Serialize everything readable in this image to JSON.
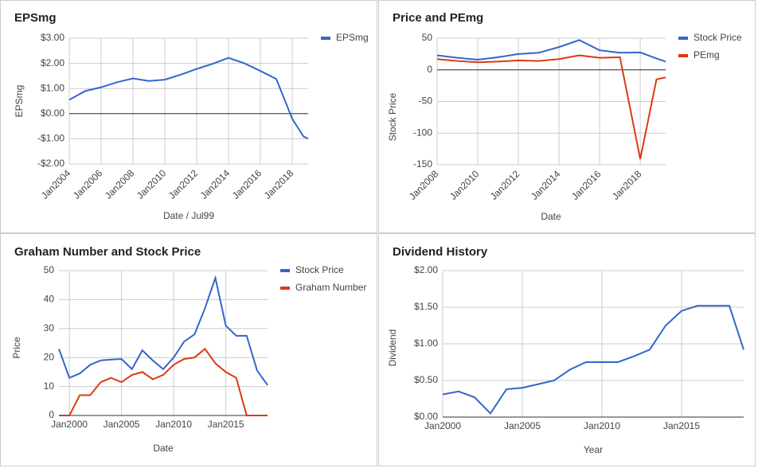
{
  "chart_data": [
    {
      "type": "line",
      "title": "EPSmg",
      "y_label": "EPSmg",
      "x_label": "Date / Jul99",
      "x": [
        2004,
        2005,
        2006,
        2007,
        2008,
        2009,
        2010,
        2011,
        2012,
        2013,
        2014,
        2015,
        2016,
        2017,
        2018,
        2018.7,
        2019
      ],
      "series": [
        {
          "name": "EPSmg",
          "color": "#3366cc",
          "values": [
            0.55,
            0.9,
            1.05,
            1.25,
            1.4,
            1.3,
            1.35,
            1.55,
            1.78,
            1.98,
            2.22,
            2.0,
            1.7,
            1.38,
            -0.2,
            -0.9,
            -1.0
          ]
        }
      ],
      "xlim": [
        2004,
        2019
      ],
      "xticks": [
        {
          "value": 2004,
          "label": "Jan2004"
        },
        {
          "value": 2006,
          "label": "Jan2006"
        },
        {
          "value": 2008,
          "label": "Jan2008"
        },
        {
          "value": 2010,
          "label": "Jan2010"
        },
        {
          "value": 2012,
          "label": "Jan2012"
        },
        {
          "value": 2014,
          "label": "Jan2014"
        },
        {
          "value": 2016,
          "label": "Jan2016"
        },
        {
          "value": 2018,
          "label": "Jan2018"
        }
      ],
      "ylim": [
        -2,
        3
      ],
      "yticks": [
        {
          "value": 3,
          "label": "$3.00"
        },
        {
          "value": 2,
          "label": "$2.00"
        },
        {
          "value": 1,
          "label": "$1.00"
        },
        {
          "value": 0,
          "label": "$0.00"
        },
        {
          "value": -1,
          "label": "-$1.00"
        },
        {
          "value": -2,
          "label": "-$2.00"
        }
      ],
      "grid": true,
      "legend": "right"
    },
    {
      "type": "line",
      "title": "Price and PEmg",
      "y_label": "Stock Price",
      "x_label": "Date",
      "x": [
        2008,
        2009,
        2010,
        2011,
        2012,
        2013,
        2014,
        2015,
        2016,
        2017,
        2018,
        2018.8,
        2019.25
      ],
      "series": [
        {
          "name": "Stock Price",
          "color": "#3366cc",
          "values": [
            23,
            19,
            16,
            20,
            25,
            27,
            36,
            47,
            31,
            27,
            27.5,
            18,
            13
          ]
        },
        {
          "name": "PEmg",
          "color": "#dc3912",
          "values": [
            17,
            14,
            12,
            13,
            15,
            14,
            17,
            23,
            19,
            20,
            -141,
            -15,
            -12
          ]
        }
      ],
      "xlim": [
        2008,
        2019.25
      ],
      "xticks": [
        {
          "value": 2008,
          "label": "Jan2008"
        },
        {
          "value": 2010,
          "label": "Jan2010"
        },
        {
          "value": 2012,
          "label": "Jan2012"
        },
        {
          "value": 2014,
          "label": "Jan2014"
        },
        {
          "value": 2016,
          "label": "Jan2016"
        },
        {
          "value": 2018,
          "label": "Jan2018"
        }
      ],
      "ylim": [
        -150,
        50
      ],
      "yticks": [
        50,
        0,
        -50,
        -100,
        -150
      ],
      "grid": true,
      "legend": "right"
    },
    {
      "type": "line",
      "title": "Graham Number and Stock Price",
      "y_label": "Price",
      "x_label": "Date",
      "x": [
        1999,
        2000,
        2001,
        2002,
        2003,
        2004,
        2005,
        2006,
        2007,
        2008,
        2009,
        2010,
        2011,
        2012,
        2013,
        2014,
        2015,
        2016,
        2017,
        2018,
        2019
      ],
      "series": [
        {
          "name": "Stock Price",
          "color": "#3366cc",
          "values": [
            23,
            13,
            14.5,
            17.5,
            19,
            19.3,
            19.5,
            16,
            22.5,
            19,
            16,
            20,
            25.5,
            28,
            37,
            47.5,
            31,
            27.5,
            27.5,
            15.5,
            10.5
          ]
        },
        {
          "name": "Graham Number",
          "color": "#dc3912",
          "values": [
            0,
            0,
            7,
            7,
            11.5,
            13,
            11.5,
            14,
            15,
            12.5,
            14,
            17.5,
            19.5,
            20,
            23,
            18,
            15,
            13,
            0,
            0,
            0
          ]
        }
      ],
      "xlim": [
        1999,
        2019
      ],
      "xticks": [
        {
          "value": 2000,
          "label": "Jan2000"
        },
        {
          "value": 2005,
          "label": "Jan2005"
        },
        {
          "value": 2010,
          "label": "Jan2010"
        },
        {
          "value": 2015,
          "label": "Jan2015"
        }
      ],
      "ylim": [
        0,
        50
      ],
      "yticks": [
        50,
        40,
        30,
        20,
        10,
        0
      ],
      "grid": true,
      "legend": "right"
    },
    {
      "type": "line",
      "title": "Dividend History",
      "y_label": "Dividend",
      "x_label": "Year",
      "x": [
        2000,
        2001,
        2002,
        2003,
        2004,
        2005,
        2006,
        2007,
        2008,
        2009,
        2010,
        2011,
        2012,
        2013,
        2014,
        2015,
        2016,
        2017,
        2018,
        2018.9
      ],
      "series": [
        {
          "color": "#3366cc",
          "values": [
            0.31,
            0.35,
            0.27,
            0.05,
            0.38,
            0.4,
            0.45,
            0.5,
            0.65,
            0.75,
            0.75,
            0.75,
            0.83,
            0.92,
            1.25,
            1.45,
            1.52,
            1.52,
            1.52,
            0.92
          ]
        }
      ],
      "xlim": [
        2000,
        2018.9
      ],
      "xticks": [
        {
          "value": 2000,
          "label": "Jan2000"
        },
        {
          "value": 2005,
          "label": "Jan2005"
        },
        {
          "value": 2010,
          "label": "Jan2010"
        },
        {
          "value": 2015,
          "label": "Jan2015"
        }
      ],
      "ylim": [
        0,
        2
      ],
      "yticks": [
        {
          "value": 2,
          "label": "$2.00"
        },
        {
          "value": 1.5,
          "label": "$1.50"
        },
        {
          "value": 1,
          "label": "$1.00"
        },
        {
          "value": 0.5,
          "label": "$0.50"
        },
        {
          "value": 0,
          "label": "$0.00"
        }
      ],
      "grid": true
    }
  ]
}
